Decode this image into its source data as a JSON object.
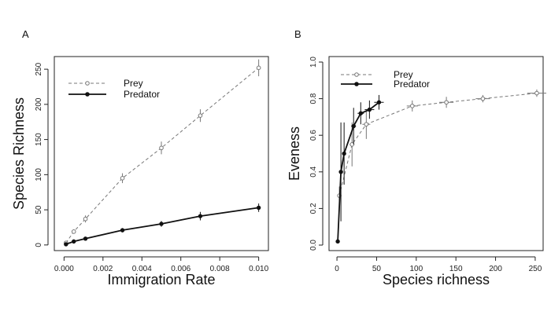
{
  "chart_data": [
    {
      "type": "line",
      "panel_label": "A",
      "xlabel": "Immigration Rate",
      "ylabel": "Species Richness",
      "xlim": [
        -0.0005,
        0.0105
      ],
      "ylim": [
        -8,
        268
      ],
      "xticks": [
        0.0,
        0.002,
        0.004,
        0.006,
        0.008,
        0.01
      ],
      "xtick_labels": [
        "0.000",
        "0.002",
        "0.004",
        "0.006",
        "0.008",
        "0.010"
      ],
      "yticks": [
        0,
        50,
        100,
        150,
        200,
        250
      ],
      "ytick_labels": [
        "0",
        "50",
        "100",
        "150",
        "200",
        "250"
      ],
      "legend_position": "top-left",
      "series": [
        {
          "name": "Prey",
          "style": "dashed",
          "marker": "open-circle",
          "color": "#777777",
          "points": [
            {
              "x": 0.0001,
              "y": 3,
              "err": 2
            },
            {
              "x": 0.0005,
              "y": 19,
              "err": 3
            },
            {
              "x": 0.0011,
              "y": 37,
              "err": 5
            },
            {
              "x": 0.003,
              "y": 95,
              "err": 7
            },
            {
              "x": 0.005,
              "y": 138,
              "err": 9
            },
            {
              "x": 0.007,
              "y": 184,
              "err": 9
            },
            {
              "x": 0.01,
              "y": 252,
              "err": 12
            }
          ]
        },
        {
          "name": "Predator",
          "style": "solid",
          "marker": "filled-circle",
          "color": "#111111",
          "points": [
            {
              "x": 0.0001,
              "y": 1,
              "err": 1
            },
            {
              "x": 0.0005,
              "y": 5,
              "err": 1.5
            },
            {
              "x": 0.0011,
              "y": 9,
              "err": 2
            },
            {
              "x": 0.003,
              "y": 21,
              "err": 3
            },
            {
              "x": 0.005,
              "y": 30,
              "err": 4
            },
            {
              "x": 0.007,
              "y": 41,
              "err": 6
            },
            {
              "x": 0.01,
              "y": 53,
              "err": 6
            }
          ]
        }
      ]
    },
    {
      "type": "line",
      "panel_label": "B",
      "xlabel": "Species richness",
      "ylabel": "Eveness",
      "xlim": [
        -10,
        260
      ],
      "ylim": [
        -0.03,
        1.03
      ],
      "xticks": [
        0,
        50,
        100,
        150,
        200,
        250
      ],
      "xtick_labels": [
        "0",
        "50",
        "100",
        "150",
        "200",
        "250"
      ],
      "yticks": [
        0.0,
        0.2,
        0.4,
        0.6,
        0.8,
        1.0
      ],
      "ytick_labels": [
        "0.0",
        "0.2",
        "0.4",
        "0.6",
        "0.8",
        "1.0"
      ],
      "legend_position": "top-left",
      "series": [
        {
          "name": "Prey",
          "style": "dashed",
          "marker": "open-circle",
          "color": "#777777",
          "points": [
            {
              "x": 3,
              "y": 0.27,
              "err": 0.05,
              "xerr": 2
            },
            {
              "x": 19,
              "y": 0.55,
              "err": 0.12,
              "xerr": 3
            },
            {
              "x": 37,
              "y": 0.66,
              "err": 0.08,
              "xerr": 5
            },
            {
              "x": 95,
              "y": 0.76,
              "err": 0.03,
              "xerr": 7
            },
            {
              "x": 138,
              "y": 0.78,
              "err": 0.03,
              "xerr": 9
            },
            {
              "x": 184,
              "y": 0.8,
              "err": 0.02,
              "xerr": 9
            },
            {
              "x": 252,
              "y": 0.83,
              "err": 0.02,
              "xerr": 12
            }
          ]
        },
        {
          "name": "Predator",
          "style": "solid",
          "marker": "filled-circle",
          "color": "#111111",
          "points": [
            {
              "x": 1,
              "y": 0.02,
              "err": 0,
              "xerr": 1
            },
            {
              "x": 5,
              "y": 0.4,
              "err": 0.27,
              "xerr": 1.5
            },
            {
              "x": 9,
              "y": 0.5,
              "err": 0.17,
              "xerr": 2
            },
            {
              "x": 21,
              "y": 0.65,
              "err": 0.1,
              "xerr": 3
            },
            {
              "x": 30,
              "y": 0.72,
              "err": 0.06,
              "xerr": 4
            },
            {
              "x": 41,
              "y": 0.74,
              "err": 0.05,
              "xerr": 6
            },
            {
              "x": 53,
              "y": 0.78,
              "err": 0.04,
              "xerr": 6
            }
          ]
        }
      ]
    }
  ]
}
